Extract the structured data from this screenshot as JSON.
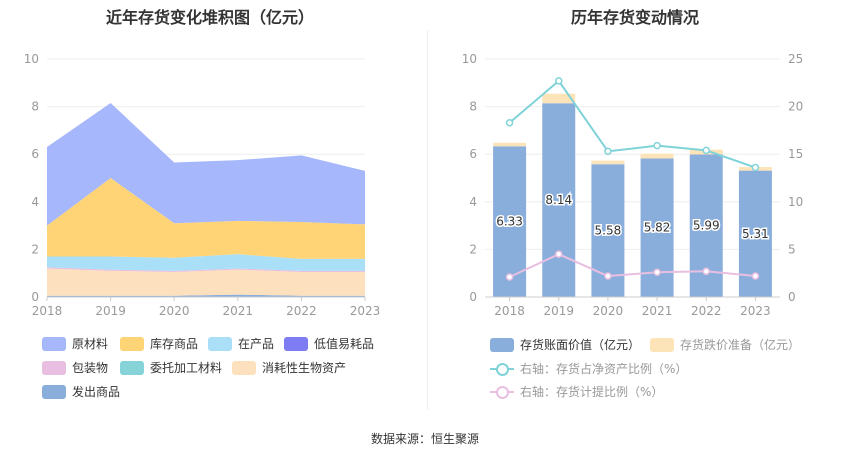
{
  "chart_data": [
    {
      "type": "area",
      "stacked": true,
      "title": "近年存货变化堆积图（亿元）",
      "x": [
        "2018",
        "2019",
        "2020",
        "2021",
        "2022",
        "2023"
      ],
      "ylim": [
        0,
        10
      ],
      "yticks": [
        0,
        2,
        4,
        6,
        8,
        10
      ],
      "series": [
        {
          "name": "原材料",
          "color": "#a6b8fb",
          "values": [
            3.3,
            3.15,
            2.55,
            2.55,
            2.8,
            2.25
          ]
        },
        {
          "name": "库存商品",
          "color": "#ffd476",
          "values": [
            1.3,
            3.3,
            1.45,
            1.4,
            1.55,
            1.45
          ]
        },
        {
          "name": "在产品",
          "color": "#a9e0f7",
          "values": [
            0.45,
            0.55,
            0.55,
            0.6,
            0.5,
            0.5
          ]
        },
        {
          "name": "低值易耗品",
          "color": "#7d7cf2",
          "values": [
            0,
            0,
            0,
            0,
            0,
            0
          ]
        },
        {
          "name": "包装物",
          "color": "#e8bfe0",
          "values": [
            0.05,
            0.05,
            0.05,
            0.05,
            0.05,
            0.05
          ]
        },
        {
          "name": "委托加工材料",
          "color": "#86d4d8",
          "values": [
            0,
            0,
            0,
            0,
            0,
            0
          ]
        },
        {
          "name": "消耗性生物资产",
          "color": "#fde0bd",
          "values": [
            1.15,
            1.05,
            1.0,
            1.05,
            1.0,
            1.0
          ]
        },
        {
          "name": "发出商品",
          "color": "#8aaedb",
          "values": [
            0.05,
            0.05,
            0.05,
            0.1,
            0.05,
            0.05
          ]
        }
      ],
      "legend_position": "bottom",
      "legend_order": [
        "原材料",
        "库存商品",
        "在产品",
        "低值易耗品",
        "包装物",
        "委托加工材料",
        "消耗性生物资产",
        "发出商品"
      ]
    },
    {
      "type": "bar",
      "title": "历年存货变动情况",
      "categories": [
        "2018",
        "2019",
        "2020",
        "2021",
        "2022",
        "2023"
      ],
      "ylim": [
        0,
        10
      ],
      "yticks": [
        0,
        2,
        4,
        6,
        8,
        10
      ],
      "y2lim": [
        0,
        25
      ],
      "y2ticks": [
        0,
        5,
        10,
        15,
        20,
        25
      ],
      "series": [
        {
          "name": "存货账面价值（亿元）",
          "type": "bar",
          "stack": "inv",
          "color": "#8aaedb",
          "values": [
            6.33,
            8.14,
            5.58,
            5.82,
            5.99,
            5.31
          ],
          "labels": [
            "6.33",
            "8.14",
            "5.58",
            "5.82",
            "5.99",
            "5.31"
          ]
        },
        {
          "name": "存货跌价准备（亿元）",
          "type": "bar",
          "stack": "inv",
          "color": "#fde3b8",
          "values": [
            0.15,
            0.4,
            0.15,
            0.2,
            0.2,
            0.15
          ]
        },
        {
          "name": "右轴：存货占净资产比例（%）",
          "type": "line",
          "axis": "right",
          "color": "#7fd3d8",
          "values": [
            18.3,
            22.7,
            15.3,
            15.9,
            15.4,
            13.6
          ]
        },
        {
          "name": "右轴：存货计提比例（%）",
          "type": "line",
          "axis": "right",
          "color": "#e8bfe0",
          "values": [
            2.1,
            4.5,
            2.2,
            2.6,
            2.7,
            2.2
          ]
        }
      ],
      "legend_position": "bottom"
    }
  ],
  "footer": {
    "source": "数据来源：恒生聚源"
  }
}
